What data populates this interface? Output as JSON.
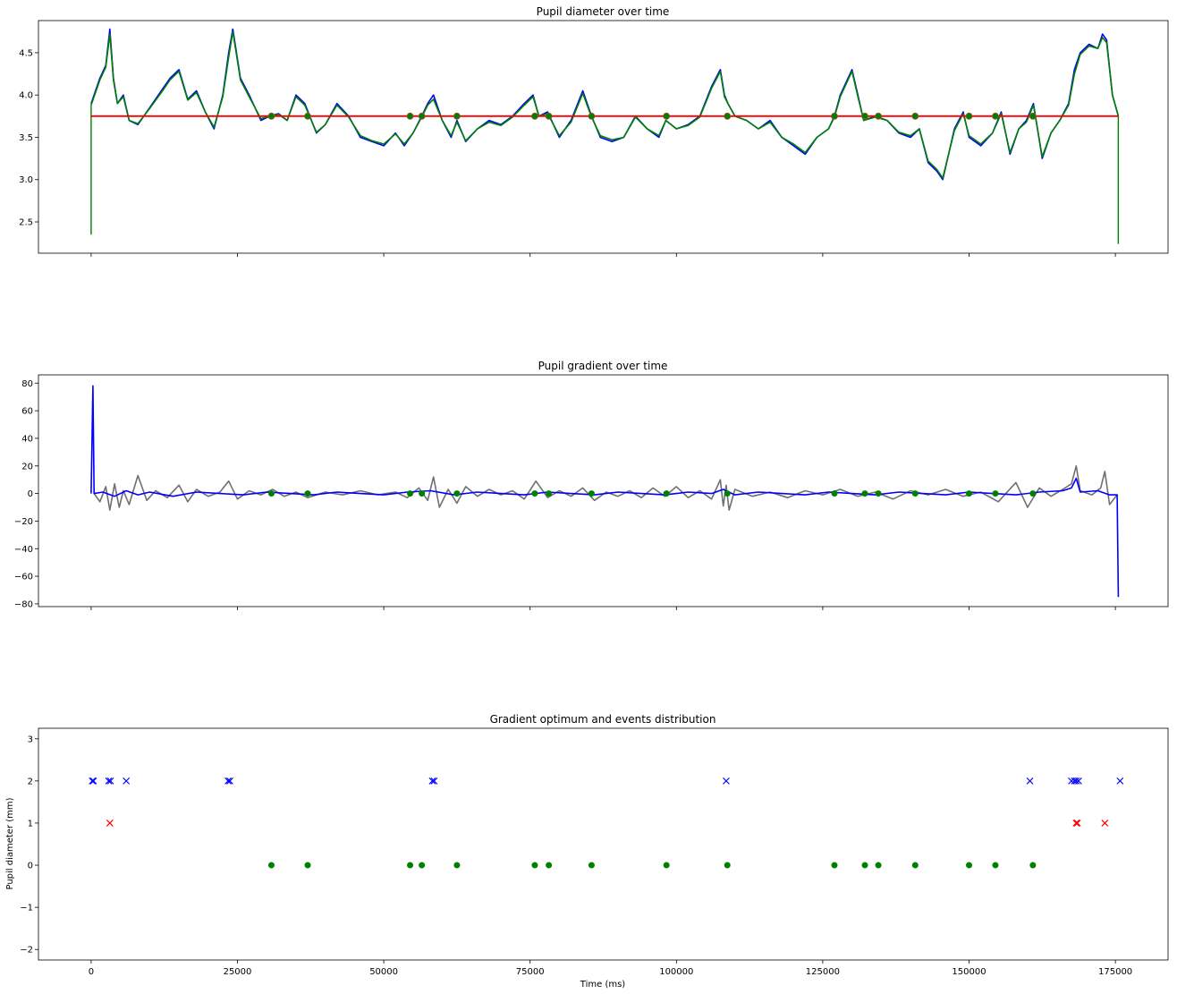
{
  "chart_data": [
    {
      "type": "line",
      "title": "Pupil diameter over time",
      "xlabel": "",
      "ylabel": "",
      "xlim": [
        -9000,
        184000
      ],
      "ylim": [
        2.13,
        4.88
      ],
      "xticks": [
        0,
        25000,
        50000,
        75000,
        100000,
        125000,
        150000,
        175000
      ],
      "show_xtick_labels": false,
      "yticks": [
        2.5,
        3.0,
        3.5,
        4.0,
        4.5
      ],
      "ytick_labels": [
        "2.5",
        "3.0",
        "3.5",
        "4.0",
        "4.5"
      ],
      "grid": false,
      "baseline": 3.75,
      "series": [
        {
          "role": "raw",
          "color": "#0000ff",
          "x": [
            0,
            1500,
            2500,
            3200,
            3800,
            4500,
            5500,
            6500,
            8000,
            10000,
            12000,
            13500,
            15000,
            16500,
            18000,
            19500,
            21000,
            22500,
            23500,
            24200,
            25500,
            27000,
            29000,
            30500,
            32000,
            33500,
            35000,
            36500,
            38500,
            40000,
            42000,
            44000,
            46000,
            48000,
            50000,
            52000,
            53500,
            55000,
            56500,
            57500,
            58500,
            60000,
            61500,
            62500,
            64000,
            66000,
            68000,
            70000,
            72000,
            74000,
            75500,
            76500,
            78000,
            80000,
            82000,
            84000,
            85500,
            87000,
            89000,
            91000,
            93000,
            95000,
            97000,
            98200,
            100000,
            102000,
            104000,
            106000,
            107500,
            108200,
            108800,
            110000,
            112000,
            114000,
            116000,
            118000,
            120000,
            122000,
            124000,
            126000,
            127000,
            128000,
            130000,
            131000,
            132000,
            134000,
            136000,
            138000,
            140000,
            141500,
            143000,
            144500,
            145500,
            146500,
            147500,
            149000,
            150000,
            152000,
            154000,
            155500,
            157000,
            158500,
            159800,
            161000,
            162500,
            164000,
            165500,
            167000,
            168000,
            169000,
            170500,
            172000,
            172800,
            173500,
            174500,
            175500
          ],
          "y": [
            3.9,
            4.2,
            4.35,
            4.78,
            4.2,
            3.9,
            4.0,
            3.7,
            3.65,
            3.85,
            4.05,
            4.2,
            4.3,
            3.95,
            4.05,
            3.8,
            3.6,
            4.0,
            4.5,
            4.78,
            4.2,
            4.0,
            3.7,
            3.75,
            3.78,
            3.7,
            4.0,
            3.9,
            3.55,
            3.65,
            3.9,
            3.75,
            3.5,
            3.45,
            3.4,
            3.55,
            3.4,
            3.55,
            3.75,
            3.9,
            4.0,
            3.7,
            3.5,
            3.7,
            3.45,
            3.6,
            3.7,
            3.65,
            3.75,
            3.9,
            4.0,
            3.75,
            3.8,
            3.5,
            3.7,
            4.05,
            3.75,
            3.5,
            3.45,
            3.5,
            3.75,
            3.6,
            3.5,
            3.7,
            3.6,
            3.65,
            3.75,
            4.1,
            4.3,
            4.0,
            3.9,
            3.75,
            3.7,
            3.6,
            3.7,
            3.5,
            3.4,
            3.3,
            3.5,
            3.6,
            3.75,
            4.0,
            4.3,
            4.0,
            3.7,
            3.75,
            3.7,
            3.55,
            3.5,
            3.6,
            3.2,
            3.1,
            3.0,
            3.3,
            3.6,
            3.8,
            3.5,
            3.4,
            3.55,
            3.8,
            3.3,
            3.6,
            3.7,
            3.9,
            3.25,
            3.55,
            3.7,
            3.9,
            4.3,
            4.5,
            4.6,
            4.55,
            4.72,
            4.65,
            4.0,
            3.75
          ]
        },
        {
          "role": "smoothed",
          "color": "#008000",
          "x": [
            0,
            1500,
            2500,
            3200,
            3800,
            4500,
            5500,
            6500,
            8000,
            10000,
            12000,
            13500,
            15000,
            16500,
            18000,
            19500,
            21000,
            22500,
            23500,
            24200,
            25500,
            27000,
            29000,
            30500,
            32000,
            33500,
            35000,
            36500,
            38500,
            40000,
            42000,
            44000,
            46000,
            48000,
            50000,
            52000,
            53500,
            55000,
            56500,
            57500,
            58500,
            60000,
            61500,
            62500,
            64000,
            66000,
            68000,
            70000,
            72000,
            74000,
            75500,
            76500,
            78000,
            80000,
            82000,
            84000,
            85500,
            87000,
            89000,
            91000,
            93000,
            95000,
            97000,
            98200,
            100000,
            102000,
            104000,
            106000,
            107500,
            108200,
            108800,
            110000,
            112000,
            114000,
            116000,
            118000,
            120000,
            122000,
            124000,
            126000,
            127000,
            128000,
            130000,
            131000,
            132000,
            134000,
            136000,
            138000,
            140000,
            141500,
            143000,
            144500,
            145500,
            146500,
            147500,
            149000,
            150000,
            152000,
            154000,
            155500,
            157000,
            158500,
            159800,
            161000,
            162500,
            164000,
            165500,
            167000,
            168000,
            169000,
            170500,
            172000,
            172800,
            173500,
            174500,
            175500
          ],
          "y": [
            3.88,
            4.18,
            4.33,
            4.72,
            4.18,
            3.9,
            3.98,
            3.7,
            3.66,
            3.84,
            4.03,
            4.18,
            4.28,
            3.94,
            4.03,
            3.8,
            3.62,
            3.98,
            4.45,
            4.75,
            4.18,
            3.98,
            3.72,
            3.75,
            3.77,
            3.7,
            3.98,
            3.88,
            3.56,
            3.65,
            3.88,
            3.74,
            3.52,
            3.46,
            3.42,
            3.54,
            3.42,
            3.55,
            3.74,
            3.88,
            3.95,
            3.7,
            3.52,
            3.68,
            3.46,
            3.6,
            3.68,
            3.64,
            3.74,
            3.88,
            3.98,
            3.75,
            3.78,
            3.52,
            3.68,
            4.02,
            3.74,
            3.52,
            3.47,
            3.5,
            3.74,
            3.6,
            3.52,
            3.7,
            3.6,
            3.64,
            3.74,
            4.08,
            4.28,
            3.98,
            3.9,
            3.75,
            3.7,
            3.6,
            3.68,
            3.5,
            3.42,
            3.32,
            3.5,
            3.6,
            3.74,
            3.98,
            4.28,
            3.98,
            3.7,
            3.74,
            3.7,
            3.56,
            3.52,
            3.6,
            3.22,
            3.12,
            3.02,
            3.3,
            3.58,
            3.78,
            3.52,
            3.42,
            3.55,
            3.78,
            3.32,
            3.6,
            3.68,
            3.88,
            3.27,
            3.55,
            3.7,
            3.88,
            4.25,
            4.48,
            4.58,
            4.55,
            4.68,
            4.62,
            4.0,
            3.75
          ]
        }
      ],
      "edge_spikes": [
        {
          "x": 0,
          "from": 3.88,
          "to": 2.35,
          "color": "#008000"
        },
        {
          "x": 175500,
          "from": 3.75,
          "to": 2.24,
          "color": "#008000"
        }
      ],
      "points": {
        "color": "#008000",
        "edge": "#a0522d",
        "y": 3.75,
        "x": [
          30800,
          37000,
          54500,
          56500,
          62500,
          75800,
          78200,
          85500,
          98300,
          108700,
          127000,
          132200,
          134500,
          140800,
          150000,
          154500,
          160900
        ]
      }
    },
    {
      "type": "line",
      "title": "Pupil gradient over time",
      "xlabel": "",
      "ylabel": "",
      "xlim": [
        -9000,
        184000
      ],
      "ylim": [
        -82,
        86
      ],
      "xticks": [
        0,
        25000,
        50000,
        75000,
        100000,
        125000,
        150000,
        175000
      ],
      "show_xtick_labels": false,
      "yticks": [
        -80,
        -60,
        -40,
        -20,
        0,
        20,
        40,
        60,
        80
      ],
      "ytick_labels": [
        "−80",
        "−60",
        "−40",
        "−20",
        "0",
        "20",
        "40",
        "60",
        "80"
      ],
      "grid": false,
      "series": [
        {
          "role": "raw-gradient",
          "color": "#707070",
          "x": [
            500,
            1500,
            2500,
            3200,
            4000,
            4800,
            5500,
            6500,
            8000,
            9500,
            11000,
            13000,
            15000,
            16500,
            18000,
            20000,
            22000,
            23500,
            25000,
            27000,
            29000,
            31000,
            33000,
            35000,
            37000,
            40000,
            43000,
            46000,
            49000,
            52000,
            54000,
            56000,
            57500,
            58500,
            59500,
            61000,
            62500,
            64000,
            66000,
            68000,
            70000,
            72000,
            74000,
            76000,
            78000,
            80000,
            82000,
            84000,
            86000,
            88000,
            90000,
            92000,
            94000,
            96000,
            98000,
            100000,
            102000,
            104000,
            106000,
            107500,
            108000,
            108500,
            109000,
            110000,
            113000,
            116000,
            119000,
            122000,
            125000,
            128000,
            131000,
            134000,
            137000,
            140000,
            143000,
            146000,
            149000,
            152000,
            155000,
            158000,
            160000,
            162000,
            164000,
            166000,
            167500,
            168300,
            169000,
            171000,
            172500,
            173200,
            174000,
            175300
          ],
          "y": [
            0,
            -6,
            5,
            -12,
            7,
            -10,
            2,
            -8,
            13,
            -5,
            2,
            -3,
            6,
            -6,
            3,
            -2,
            1,
            9,
            -4,
            2,
            -1,
            3,
            -2,
            1,
            -3,
            1,
            -1,
            2,
            -1,
            1,
            -3,
            4,
            -5,
            12,
            -10,
            3,
            -7,
            5,
            -2,
            3,
            -1,
            2,
            -4,
            9,
            -3,
            2,
            -2,
            4,
            -5,
            1,
            -2,
            2,
            -3,
            4,
            -2,
            5,
            -3,
            2,
            -4,
            10,
            -9,
            6,
            -12,
            3,
            -2,
            1,
            -3,
            2,
            -1,
            3,
            -2,
            1,
            -4,
            2,
            -1,
            3,
            -2,
            1,
            -6,
            8,
            -10,
            4,
            -2,
            3,
            7,
            20,
            2,
            -1,
            4,
            16,
            -8,
            -1
          ]
        },
        {
          "role": "smoothed-gradient",
          "color": "#0000ff",
          "x": [
            0,
            300,
            500,
            2000,
            4000,
            6000,
            8000,
            10000,
            14000,
            18000,
            22000,
            26000,
            30000,
            34000,
            38000,
            42000,
            46000,
            50000,
            54000,
            58000,
            62000,
            66000,
            70000,
            74000,
            78000,
            82000,
            86000,
            90000,
            94000,
            98000,
            102000,
            106000,
            108000,
            110000,
            114000,
            118000,
            122000,
            126000,
            130000,
            134000,
            138000,
            142000,
            146000,
            150000,
            154000,
            158000,
            162000,
            166000,
            167500,
            168300,
            169000,
            172000,
            174000,
            175300,
            175500
          ],
          "y": [
            0,
            78,
            0,
            1,
            -2,
            2,
            -1,
            1,
            -2,
            1,
            0,
            -1,
            1,
            0,
            -1,
            1,
            0,
            -1,
            1,
            2,
            -1,
            1,
            0,
            -1,
            1,
            0,
            -1,
            1,
            0,
            -1,
            1,
            0,
            3,
            -1,
            1,
            0,
            -1,
            1,
            0,
            -1,
            1,
            0,
            -1,
            1,
            0,
            -1,
            1,
            2,
            4,
            11,
            1,
            2,
            -1,
            -1,
            -75
          ]
        }
      ],
      "points": {
        "color": "#008000",
        "y": 0,
        "x": [
          30800,
          37000,
          54500,
          56500,
          62500,
          75800,
          78200,
          85500,
          98300,
          108700,
          127000,
          132200,
          134500,
          140800,
          150000,
          154500,
          160900
        ]
      }
    },
    {
      "type": "scatter",
      "title": "Gradient optimum and events distribution",
      "xlabel": "Time (ms)",
      "ylabel": "Pupil diameter (mm)",
      "xlim": [
        -9000,
        184000
      ],
      "ylim": [
        -2.25,
        3.25
      ],
      "xticks": [
        0,
        25000,
        50000,
        75000,
        100000,
        125000,
        150000,
        175000
      ],
      "xtick_labels": [
        "0",
        "25000",
        "50000",
        "75000",
        "100000",
        "125000",
        "150000",
        "175000"
      ],
      "yticks": [
        -2,
        -1,
        0,
        1,
        2,
        3
      ],
      "ytick_labels": [
        "−2",
        "−1",
        "0",
        "1",
        "2",
        "3"
      ],
      "grid": false,
      "series": [
        {
          "marker": "x",
          "color": "#0000ff",
          "y": 2,
          "x": [
            200,
            400,
            3000,
            3300,
            6000,
            23400,
            23700,
            58300,
            58600,
            108500,
            160400,
            167500,
            168000,
            168300,
            168700,
            175800
          ]
        },
        {
          "marker": "x",
          "color": "#ff0000",
          "y": 1,
          "x": [
            3200,
            168300,
            168500,
            173200
          ]
        },
        {
          "marker": "o",
          "color": "#008000",
          "y": 0,
          "x": [
            30800,
            37000,
            54500,
            56500,
            62500,
            75800,
            78200,
            85500,
            98300,
            108700,
            127000,
            132200,
            134500,
            140800,
            150000,
            154500,
            160900
          ]
        }
      ]
    }
  ]
}
